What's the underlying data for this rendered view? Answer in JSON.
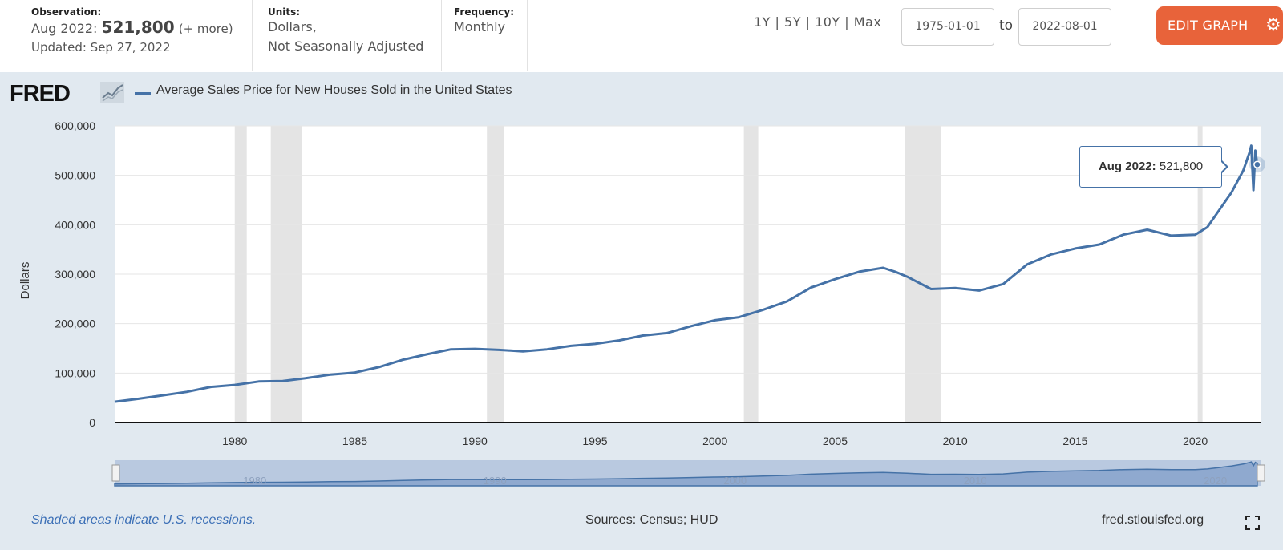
{
  "header": {
    "observation_label": "Observation:",
    "observation_date": "Aug 2022:",
    "observation_value": "521,800",
    "observation_more": "(+ more)",
    "updated": "Updated: Sep 27, 2022",
    "units_label": "Units:",
    "units_line1": "Dollars,",
    "units_line2": "Not Seasonally Adjusted",
    "frequency_label": "Frequency:",
    "frequency_value": "Monthly",
    "range_options": "1Y | 5Y | 10Y | Max",
    "date_from": "1975-01-01",
    "to_label": "to",
    "date_to": "2022-08-01",
    "edit_label": "EDIT GRAPH"
  },
  "logo_text": "FRED",
  "colors": {
    "series": "#4572a7",
    "accent": "#e8633a",
    "background": "#e1e9f0",
    "recession": "#e4e4e4"
  },
  "footer": {
    "note": "Shaded areas indicate U.S. recessions.",
    "sources": "Sources: Census; HUD",
    "site": "fred.stlouisfed.org"
  },
  "tooltip": {
    "date": "Aug 2022:",
    "value": "521,800"
  },
  "chart_data": {
    "type": "line",
    "title": "Average Sales Price for New Houses Sold in the United States",
    "ylabel": "Dollars",
    "xlabel": "",
    "xlim": [
      1975.0,
      2022.75
    ],
    "ylim": [
      0,
      600000
    ],
    "yticks": [
      0,
      100000,
      200000,
      300000,
      400000,
      500000,
      600000
    ],
    "ytick_labels": [
      "0",
      "100,000",
      "200,000",
      "300,000",
      "400,000",
      "500,000",
      "600,000"
    ],
    "xticks": [
      1980,
      1985,
      1990,
      1995,
      2000,
      2005,
      2010,
      2015,
      2020
    ],
    "xtick_labels": [
      "1980",
      "1985",
      "1990",
      "1995",
      "2000",
      "2005",
      "2010",
      "2015",
      "2020"
    ],
    "navigator_labels": [
      "1980",
      "1990",
      "2000",
      "2010",
      "2020"
    ],
    "recessions": [
      [
        1980.0,
        1980.5
      ],
      [
        1981.5,
        1982.8
      ],
      [
        1990.5,
        1991.2
      ],
      [
        2001.2,
        2001.8
      ],
      [
        2007.9,
        2009.4
      ],
      [
        2020.1,
        2020.3
      ]
    ],
    "series": [
      {
        "name": "Average Sales Price for New Houses Sold in the United States",
        "x": [
          1975.0,
          1976.0,
          1977.0,
          1978.0,
          1979.0,
          1980.0,
          1981.0,
          1982.0,
          1983.0,
          1984.0,
          1985.0,
          1986.0,
          1987.0,
          1988.0,
          1989.0,
          1990.0,
          1991.0,
          1992.0,
          1993.0,
          1994.0,
          1995.0,
          1996.0,
          1997.0,
          1998.0,
          1999.0,
          2000.0,
          2001.0,
          2002.0,
          2003.0,
          2004.0,
          2005.0,
          2006.0,
          2007.0,
          2007.5,
          2008.0,
          2009.0,
          2010.0,
          2011.0,
          2012.0,
          2013.0,
          2014.0,
          2015.0,
          2016.0,
          2017.0,
          2018.0,
          2019.0,
          2020.0,
          2020.5,
          2021.0,
          2021.5,
          2022.0,
          2022.25,
          2022.33,
          2022.42,
          2022.5,
          2022.58
        ],
        "values": [
          42000,
          48000,
          55000,
          62000,
          72000,
          76000,
          83000,
          84000,
          90000,
          97000,
          101000,
          112000,
          127000,
          138000,
          148000,
          149000,
          147000,
          144000,
          148000,
          155000,
          159000,
          166000,
          176000,
          181000,
          195000,
          207000,
          213000,
          228000,
          245000,
          273000,
          290000,
          305000,
          313000,
          305000,
          295000,
          270000,
          272000,
          267000,
          280000,
          320000,
          340000,
          352000,
          360000,
          380000,
          390000,
          378000,
          380000,
          395000,
          430000,
          465000,
          510000,
          545000,
          560000,
          470000,
          550000,
          521800
        ]
      }
    ]
  }
}
